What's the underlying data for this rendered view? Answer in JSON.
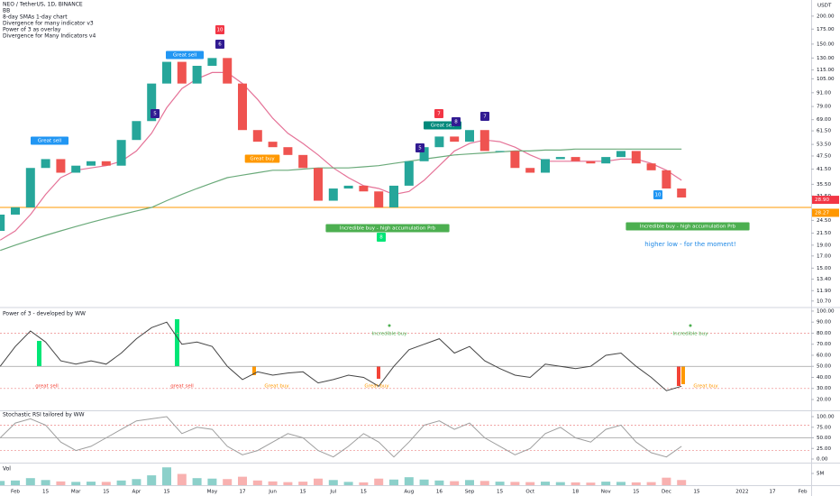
{
  "header": {
    "symbol": "NEO / TetherUS, 1D, BINANCE",
    "currency": "USDT",
    "indicators": [
      "BB",
      "8-day SMAs 1-day chart",
      "Divergence for many indicator v3",
      "Power of 3 as overlay",
      "Divergence for Many Indicators v4"
    ]
  },
  "chart_data": [
    {
      "type": "candlestick",
      "log_scale": true,
      "up_color": "#26a69a",
      "down_color": "#ef5350",
      "ylim": [
        10.1,
        236
      ],
      "yticks": [
        {
          "value": 200,
          "label": "200.00"
        },
        {
          "value": 175,
          "label": "175.00"
        },
        {
          "value": 150,
          "label": "150.00"
        },
        {
          "value": 130,
          "label": "130.00"
        },
        {
          "value": 115,
          "label": "115.00"
        },
        {
          "value": 105,
          "label": "105.00"
        },
        {
          "value": 91,
          "label": "91.00"
        },
        {
          "value": 79,
          "label": "79.00"
        },
        {
          "value": 69,
          "label": "69.00"
        },
        {
          "value": 61.5,
          "label": "61.50"
        },
        {
          "value": 53.5,
          "label": "53.50"
        },
        {
          "value": 47.5,
          "label": "47.50"
        },
        {
          "value": 41.5,
          "label": "41.50"
        },
        {
          "value": 35.5,
          "label": "35.50"
        },
        {
          "value": 31.5,
          "label": "31.50"
        },
        {
          "value": 24.5,
          "label": "24.50"
        },
        {
          "value": 21.5,
          "label": "21.50"
        },
        {
          "value": 19,
          "label": "19.00"
        },
        {
          "value": 17,
          "label": "17.00"
        },
        {
          "value": 15,
          "label": "15.00"
        },
        {
          "value": 13.4,
          "label": "13.40"
        },
        {
          "value": 11.9,
          "label": "11.90"
        },
        {
          "value": 10.7,
          "label": "10.70"
        }
      ],
      "open": [
        22,
        26,
        28,
        42,
        46,
        40,
        43,
        45,
        43,
        56,
        68,
        100,
        125,
        100,
        120,
        130,
        100,
        62,
        55,
        52,
        48,
        42,
        30,
        34,
        35,
        33,
        28,
        35,
        45,
        52,
        58,
        55,
        62,
        50,
        50,
        42,
        40,
        46,
        47,
        45,
        44,
        47,
        50,
        44,
        41,
        34,
        null,
        null,
        null,
        null,
        null,
        null,
        null,
        null
      ],
      "close": [
        26,
        28,
        42,
        46,
        40,
        43,
        45,
        43,
        56,
        68,
        100,
        125,
        100,
        120,
        130,
        100,
        62,
        55,
        52,
        48,
        42,
        30,
        34,
        35,
        33,
        28,
        35,
        45,
        52,
        58,
        55,
        62,
        50,
        50,
        42,
        40,
        46,
        47,
        45,
        44,
        47,
        50,
        44,
        41,
        34,
        31,
        null,
        null,
        null,
        null,
        null,
        null,
        null,
        null
      ],
      "lines": [
        {
          "color": "#e57398",
          "values": [
            20,
            22,
            26,
            32,
            38,
            41,
            42,
            43,
            45,
            50,
            60,
            78,
            95,
            105,
            112,
            112,
            100,
            85,
            70,
            60,
            54,
            48,
            42,
            38,
            35,
            34,
            32,
            33,
            37,
            43,
            50,
            54,
            56,
            55,
            52,
            48,
            45,
            45,
            45,
            45,
            45,
            46,
            46,
            44,
            41,
            37,
            null,
            null,
            null,
            null,
            null,
            null,
            null,
            null
          ]
        },
        {
          "color": "#6aaa7a",
          "values": [
            18,
            19,
            20,
            21,
            22,
            23,
            24,
            25,
            26,
            27,
            28,
            30,
            32,
            34,
            36,
            38,
            39,
            40,
            41,
            41,
            41.5,
            42,
            42,
            42,
            42.5,
            43,
            44,
            45,
            46,
            47,
            48,
            48.5,
            49,
            49.5,
            50,
            50,
            50.5,
            50.5,
            51,
            51,
            51,
            51,
            51,
            51,
            51,
            51,
            null,
            null,
            null,
            null,
            null,
            null,
            null,
            null
          ]
        }
      ],
      "hlines": [
        {
          "value": 28,
          "color": "#ff9800"
        }
      ],
      "price_labels": [
        {
          "value": 28.9,
          "label": "28.90",
          "color": "#f23645"
        },
        {
          "value": 28.27,
          "label": "28.27",
          "color": "#ff9800"
        }
      ],
      "annotations": [
        {
          "text": "Great sell",
          "color": "#2196f3"
        },
        {
          "text": "Great sell",
          "color": "#2196f3"
        },
        {
          "text": "Great sell",
          "color": "#00897b"
        },
        {
          "text": "Great buy",
          "color": "#ff9800"
        },
        {
          "text": "Incredible buy - high accumulation Prb",
          "color": "#4caf50"
        },
        {
          "text": "Incredible buy - high accumulation Prb",
          "color": "#4caf50"
        }
      ],
      "markers": [
        {
          "text": "5",
          "color": "#311b92"
        },
        {
          "text": "6",
          "color": "#311b92"
        },
        {
          "text": "10",
          "color": "#f23645"
        },
        {
          "text": "5",
          "color": "#311b92"
        },
        {
          "text": "7",
          "color": "#f23645"
        },
        {
          "text": "8",
          "color": "#311b92"
        },
        {
          "text": "7",
          "color": "#311b92"
        },
        {
          "text": "8",
          "color": "#00e676"
        },
        {
          "text": "10",
          "color": "#2196f3"
        }
      ],
      "note": {
        "text": "higher low - for the moment!",
        "color": "#1e88e5"
      }
    },
    {
      "type": "line",
      "title": "Power of 3 - developed by WW",
      "color": "#444444",
      "ylim": [
        10.2,
        102.4
      ],
      "yticks": [
        {
          "value": 100,
          "label": "100.00"
        },
        {
          "value": 90,
          "label": "90.00"
        },
        {
          "value": 80,
          "label": "80.00"
        },
        {
          "value": 70,
          "label": "70.00"
        },
        {
          "value": 60,
          "label": "60.00"
        },
        {
          "value": 50,
          "label": "50.00"
        },
        {
          "value": 40,
          "label": "40.00"
        },
        {
          "value": 30,
          "label": "30.00"
        },
        {
          "value": 20,
          "label": "20.00"
        }
      ],
      "levels": [
        80,
        50,
        30
      ],
      "values": [
        50,
        68,
        82,
        72,
        55,
        52,
        55,
        52,
        62,
        75,
        85,
        90,
        70,
        72,
        68,
        50,
        38,
        45,
        42,
        44,
        45,
        35,
        38,
        42,
        40,
        32,
        50,
        65,
        70,
        75,
        62,
        68,
        55,
        48,
        42,
        40,
        52,
        50,
        48,
        50,
        60,
        62,
        50,
        40,
        28,
        32,
        null,
        null,
        null,
        null,
        null,
        null,
        null,
        null
      ],
      "annotations": [
        {
          "text": "great sell",
          "color": "#f44336"
        },
        {
          "text": "great sell",
          "color": "#f44336"
        },
        {
          "text": "Great buy",
          "color": "#ff9800"
        },
        {
          "text": "Great buy",
          "color": "#ff9800"
        },
        {
          "text": "Incredible buy",
          "color": "#4caf50"
        },
        {
          "text": "Incredible buy",
          "color": "#4caf50"
        },
        {
          "text": "Great buy",
          "color": "#ff9800"
        }
      ]
    },
    {
      "type": "line",
      "title": "Stochastic RSI tailored by WW",
      "color": "#9e9e9e",
      "ylim": [
        -8.5,
        112.8
      ],
      "yticks": [
        {
          "value": 100,
          "label": "100.00"
        },
        {
          "value": 75,
          "label": "75.00"
        },
        {
          "value": 50,
          "label": "50.00"
        },
        {
          "value": 25,
          "label": "25.00"
        },
        {
          "value": 0,
          "label": "0.00"
        }
      ],
      "levels": [
        80,
        50,
        20
      ],
      "values": [
        50,
        85,
        95,
        80,
        40,
        20,
        30,
        50,
        70,
        90,
        95,
        100,
        60,
        75,
        70,
        30,
        10,
        20,
        40,
        60,
        50,
        20,
        5,
        30,
        60,
        40,
        5,
        40,
        80,
        90,
        70,
        85,
        50,
        30,
        10,
        25,
        60,
        75,
        50,
        40,
        70,
        80,
        40,
        15,
        5,
        30,
        null,
        null,
        null,
        null,
        null,
        null,
        null,
        null
      ]
    },
    {
      "type": "bar",
      "title": "Vol",
      "ylim": [
        0,
        9230000
      ],
      "yticks": [
        {
          "value": 5000000,
          "label": "5M"
        }
      ],
      "values": [
        1800000,
        2000000,
        3000000,
        2200000,
        1600000,
        1400000,
        1500000,
        1400000,
        2000000,
        2600000,
        4200000,
        7600000,
        4800000,
        3000000,
        2800000,
        2600000,
        3600000,
        2000000,
        1600000,
        1300000,
        1500000,
        2800000,
        2200000,
        1400000,
        1200000,
        2800000,
        2400000,
        3400000,
        2400000,
        2000000,
        1700000,
        2200000,
        1800000,
        1500000,
        1400000,
        1300000,
        1500000,
        1300000,
        1200000,
        1100000,
        1500000,
        1400000,
        1200000,
        1300000,
        3200000,
        2200000,
        null,
        null,
        null,
        null,
        null,
        null,
        null,
        null
      ],
      "categories": [
        null,
        "Feb",
        null,
        "15",
        null,
        "Mar",
        null,
        "15",
        null,
        "Apr",
        null,
        "15",
        null,
        null,
        "May",
        null,
        "17",
        null,
        "Jun",
        null,
        "15",
        null,
        "Jul",
        null,
        "15",
        null,
        null,
        "Aug",
        null,
        "16",
        null,
        "Sep",
        null,
        "15",
        null,
        "Oct",
        null,
        null,
        "18",
        null,
        "Nov",
        null,
        "15",
        null,
        "Dec",
        null,
        "15",
        null,
        null,
        "2022",
        null,
        "17",
        null,
        "Feb"
      ]
    }
  ]
}
